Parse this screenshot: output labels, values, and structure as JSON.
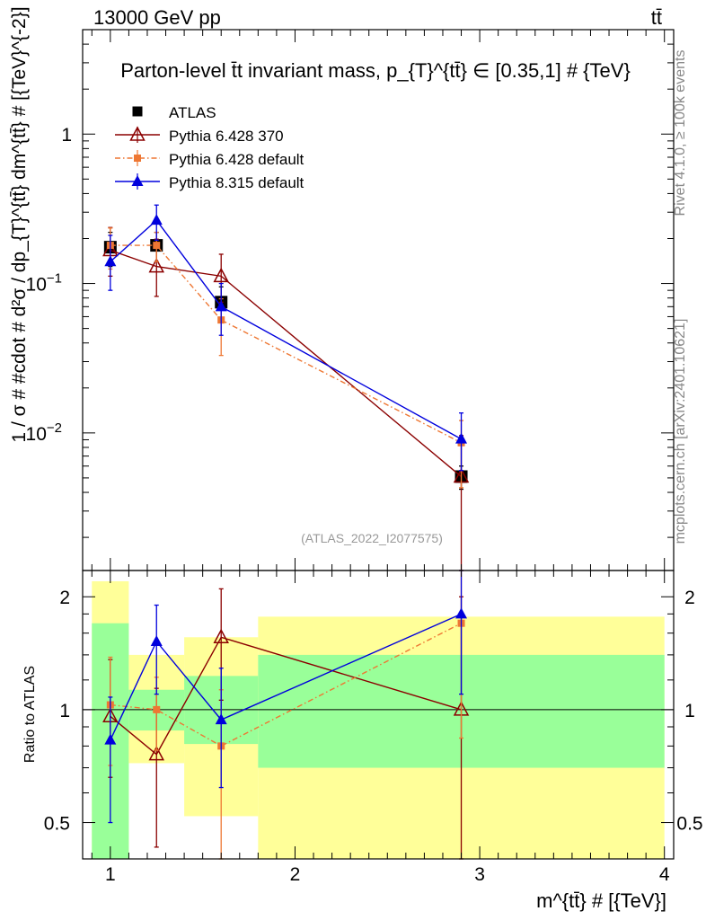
{
  "header": {
    "left": "13000 GeV pp",
    "right": "tt̄"
  },
  "side_labels": {
    "rivet": "Rivet 4.1.0, ≥ 100k events",
    "mcplots": "mcplots.cern.ch [arXiv:2401.10621]"
  },
  "colors": {
    "atlas": "#000000",
    "py6_370": "#8b0000",
    "py6_default": "#ee7733",
    "py8": "#0000dd",
    "band_inner": "#99ff99",
    "band_outer": "#ffff99"
  },
  "chart_data": [
    {
      "type": "scatter",
      "title": "Parton-level t̄t invariant mass, p_{T}^{tt̄} ∈ [0.35,1] # {TeV}",
      "xlabel": "m^{tt̄} # [{TeV}]",
      "ylabel": "1 / σ # #cdot # d²σ / dp_{T}^{tt̄} dm^{tt̄} # [{TeV}^{-2}]",
      "watermark": "(ATLAS_2022_I2077575)",
      "xlim": [
        0.85,
        4.05
      ],
      "ylim": [
        0.0012,
        5
      ],
      "yscale": "log",
      "ytick_labels": [
        "10^{-2}",
        "10^{-1}",
        "1"
      ],
      "ytick_values": [
        0.01,
        0.1,
        1
      ],
      "legend_position": "top-left",
      "series": [
        {
          "name": "ATLAS",
          "marker": "filled-square",
          "x": [
            1.0,
            1.25,
            1.6,
            2.9
          ],
          "y": [
            0.175,
            0.18,
            0.075,
            0.0051
          ],
          "err": [
            0.045,
            0.04,
            0.02,
            0.0009
          ]
        },
        {
          "name": "Pythia 6.428 370",
          "marker": "open-triangle",
          "x": [
            1.0,
            1.25,
            1.6,
            2.9
          ],
          "y": [
            0.167,
            0.13,
            0.112,
            0.0051
          ],
          "err_lo": [
            0.055,
            0.048,
            0.037,
            0.0039
          ],
          "err_hi": [
            0.07,
            0.068,
            0.045,
            0.0045
          ]
        },
        {
          "name": "Pythia 6.428 default",
          "marker": "filled-square-small",
          "dash": true,
          "x": [
            1.0,
            1.25,
            1.6,
            2.9
          ],
          "y": [
            0.18,
            0.18,
            0.057,
            0.0086
          ],
          "err_lo": [
            0.055,
            0.04,
            0.024,
            0.0043
          ],
          "err_hi": [
            0.055,
            0.04,
            0.022,
            0.0035
          ]
        },
        {
          "name": "Pythia 8.315 default",
          "marker": "filled-triangle",
          "x": [
            1.0,
            1.25,
            1.6,
            2.9
          ],
          "y": [
            0.14,
            0.265,
            0.07,
            0.0091
          ],
          "err_lo": [
            0.05,
            0.07,
            0.025,
            0.0035
          ],
          "err_hi": [
            0.07,
            0.07,
            0.03,
            0.0045
          ]
        }
      ]
    },
    {
      "type": "scatter",
      "title": "",
      "xlabel": "m^{tt̄} # [{TeV}]",
      "ylabel": "Ratio to ATLAS",
      "xlim": [
        0.85,
        4.05
      ],
      "ylim": [
        0.4,
        2.35
      ],
      "yscale": "log",
      "ytick_values": [
        0.5,
        1,
        2
      ],
      "ytick_labels": [
        "0.5",
        "1",
        "2"
      ],
      "xtick_values": [
        1,
        2,
        3,
        4
      ],
      "xtick_labels": [
        "1",
        "2",
        "3",
        "4"
      ],
      "bands": [
        {
          "x0": 0.9,
          "x1": 1.1,
          "inner": [
            0.4,
            1.7
          ],
          "outer": [
            0.4,
            2.2
          ]
        },
        {
          "x0": 1.1,
          "x1": 1.4,
          "inner": [
            0.88,
            1.13
          ],
          "outer": [
            0.72,
            1.4
          ]
        },
        {
          "x0": 1.4,
          "x1": 1.8,
          "inner": [
            0.81,
            1.23
          ],
          "outer": [
            0.52,
            1.56
          ]
        },
        {
          "x0": 1.8,
          "x1": 4.0,
          "inner": [
            0.7,
            1.4
          ],
          "outer": [
            0.4,
            1.77
          ]
        }
      ],
      "series": [
        {
          "name": "Pythia 6.428 370",
          "x": [
            1.0,
            1.25,
            1.6,
            2.9
          ],
          "y": [
            0.96,
            0.76,
            1.56,
            1.0
          ],
          "err_lo": [
            0.3,
            0.33,
            0.5,
            0.66
          ],
          "err_hi": [
            0.4,
            0.38,
            0.54,
            1.0
          ]
        },
        {
          "name": "Pythia 6.428 default",
          "x": [
            1.0,
            1.25,
            1.6,
            2.9
          ],
          "y": [
            1.03,
            1.0,
            0.8,
            1.7
          ],
          "err_lo": [
            0.32,
            0.22,
            0.42,
            0.86
          ],
          "err_hi": [
            0.35,
            0.22,
            0.33,
            0.7
          ]
        },
        {
          "name": "Pythia 8.315 default",
          "x": [
            1.0,
            1.25,
            1.6,
            2.9
          ],
          "y": [
            0.83,
            1.52,
            0.94,
            1.8
          ],
          "err_lo": [
            0.33,
            0.42,
            0.32,
            0.7
          ],
          "err_hi": [
            0.25,
            0.38,
            0.35,
            0.9
          ]
        }
      ]
    }
  ]
}
